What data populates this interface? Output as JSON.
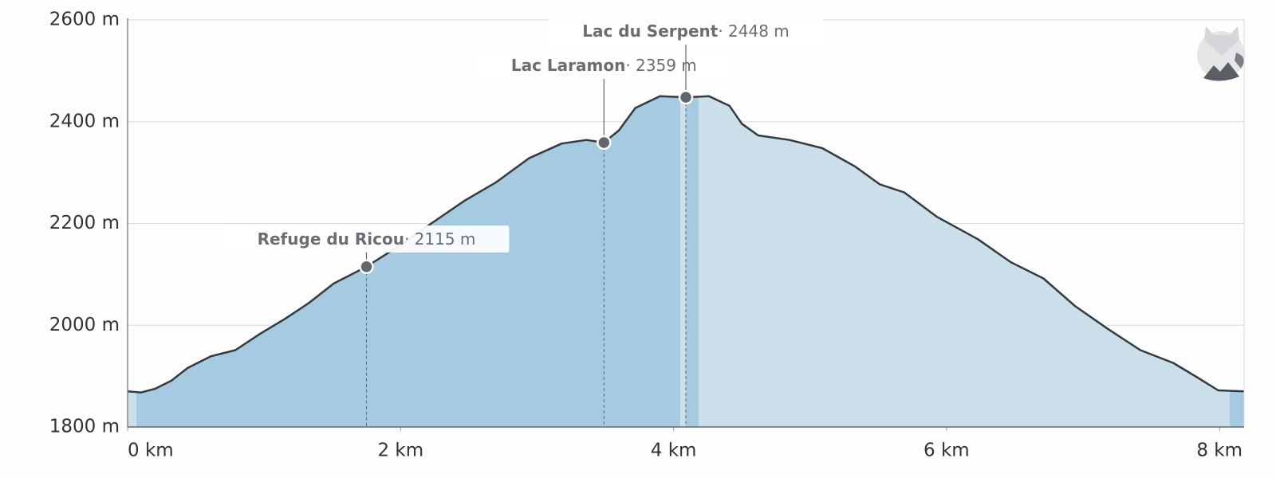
{
  "chart_data": {
    "type": "area",
    "x": [
      0,
      0.1,
      0.2,
      0.32,
      0.44,
      0.61,
      0.79,
      0.97,
      1.15,
      1.33,
      1.51,
      1.75,
      1.99,
      2.23,
      2.47,
      2.7,
      2.94,
      3.18,
      3.36,
      3.49,
      3.6,
      3.72,
      3.9,
      4.09,
      4.26,
      4.41,
      4.5,
      4.62,
      4.85,
      5.09,
      5.33,
      5.51,
      5.69,
      5.93,
      6.23,
      6.47,
      6.71,
      6.94,
      7.18,
      7.42,
      7.66,
      7.84,
      7.99,
      8.18
    ],
    "values": [
      1870,
      1868,
      1875,
      1891,
      1916,
      1939,
      1951,
      1983,
      2012,
      2044,
      2082,
      2115,
      2156,
      2201,
      2245,
      2281,
      2328,
      2357,
      2364,
      2359,
      2383,
      2427,
      2450,
      2448,
      2450,
      2431,
      2396,
      2373,
      2364,
      2348,
      2312,
      2277,
      2261,
      2213,
      2169,
      2124,
      2092,
      2038,
      1993,
      1951,
      1926,
      1897,
      1872,
      1870
    ],
    "color": "#333a40",
    "xlim": [
      0,
      8.18
    ],
    "ylim": [
      1800,
      2600
    ],
    "xticks": [
      {
        "value": 0,
        "label": "0 km"
      },
      {
        "value": 2,
        "label": "2 km"
      },
      {
        "value": 4,
        "label": "4 km"
      },
      {
        "value": 6,
        "label": "6 km"
      },
      {
        "value": 8,
        "label": "8 km"
      }
    ],
    "yticks": [
      {
        "value": 1800,
        "label": "1800 m"
      },
      {
        "value": 2000,
        "label": "2000 m"
      },
      {
        "value": 2200,
        "label": "2200 m"
      },
      {
        "value": 2400,
        "label": "2400 m"
      },
      {
        "value": 2600,
        "label": "2600 m"
      }
    ],
    "grid": true,
    "annotations": [
      {
        "label": "Refuge du Ricou",
        "x": 1.75,
        "value": 2115,
        "value_label": "· 2115 m"
      },
      {
        "label": "Lac Laramon",
        "x": 3.49,
        "value": 2359,
        "value_label": "· 2359 m"
      },
      {
        "label": "Lac du Serpent",
        "x": 4.09,
        "value": 2448,
        "value_label": "· 2448 m"
      }
    ]
  }
}
